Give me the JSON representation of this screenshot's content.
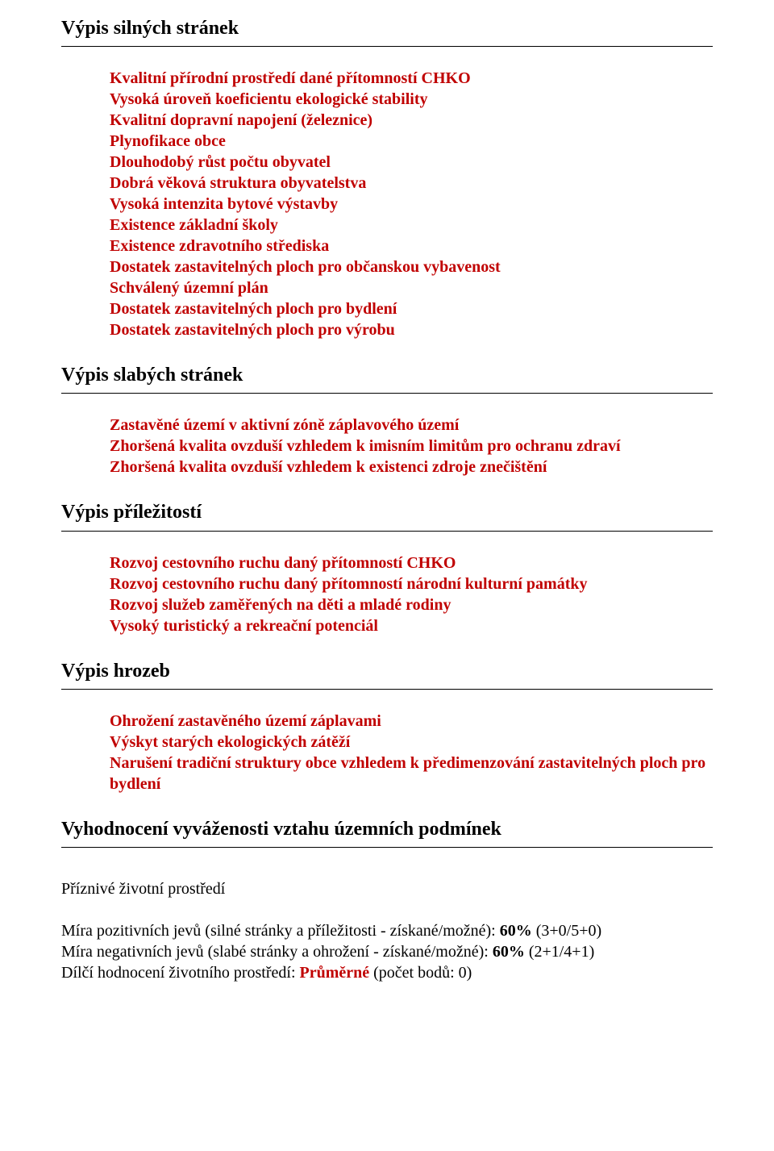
{
  "colors": {
    "text": "#000000",
    "accent_red": "#c00000",
    "background": "#ffffff",
    "rule": "#000000"
  },
  "typography": {
    "family": "Times New Roman",
    "body_size_pt": 15,
    "heading_size_pt": 18,
    "heading_weight": "bold",
    "list_weight": "bold"
  },
  "sections": {
    "strengths": {
      "heading": "Výpis silných stránek",
      "items": [
        "Kvalitní přírodní prostředí dané přítomností CHKO",
        "Vysoká úroveň koeficientu ekologické stability",
        "Kvalitní dopravní napojení (železnice)",
        "Plynofikace obce",
        "Dlouhodobý růst počtu obyvatel",
        "Dobrá věková struktura obyvatelstva",
        "Vysoká intenzita bytové výstavby",
        "Existence základní školy",
        "Existence zdravotního střediska",
        "Dostatek zastavitelných ploch pro občanskou vybavenost",
        "Schválený územní plán",
        "Dostatek zastavitelných ploch pro bydlení",
        "Dostatek zastavitelných ploch pro výrobu"
      ]
    },
    "weaknesses": {
      "heading": "Výpis slabých stránek",
      "items": [
        "Zastavěné území v aktivní zóně záplavového území",
        "Zhoršená kvalita ovzduší vzhledem k imisním limitům pro ochranu zdraví",
        "Zhoršená kvalita ovzduší vzhledem k existenci zdroje znečištění"
      ]
    },
    "opportunities": {
      "heading": "Výpis příležitostí",
      "items": [
        "Rozvoj cestovního ruchu daný přítomností CHKO",
        "Rozvoj cestovního ruchu daný přítomností národní kulturní památky",
        "Rozvoj služeb zaměřených na děti a mladé rodiny",
        "Vysoký turistický a rekreační potenciál"
      ]
    },
    "threats": {
      "heading": "Výpis hrozeb",
      "items": [
        "Ohrožení zastavěného území záplavami",
        "Výskyt starých ekologických zátěží",
        "Narušení tradiční struktury obce vzhledem k předimenzování zastavitelných ploch pro bydlení"
      ]
    }
  },
  "evaluation": {
    "heading": "Vyhodnocení vyváženosti vztahu územních podmínek",
    "sub_heading": "Příznivé životní prostředí",
    "positive": {
      "prefix": "Míra pozitivních jevů (silné stránky a příležitosti - získané/možné): ",
      "bold": "60% ",
      "suffix": "(3+0/5+0)"
    },
    "negative": {
      "prefix": "Míra negativních jevů (slabé stránky a ohrožení - získané/možné): ",
      "bold": "60% ",
      "suffix": "(2+1/4+1)"
    },
    "partial": {
      "prefix": "Dílčí hodnocení životního prostředí: ",
      "red": "Průměrné ",
      "suffix": "(počet bodů: 0)"
    }
  }
}
